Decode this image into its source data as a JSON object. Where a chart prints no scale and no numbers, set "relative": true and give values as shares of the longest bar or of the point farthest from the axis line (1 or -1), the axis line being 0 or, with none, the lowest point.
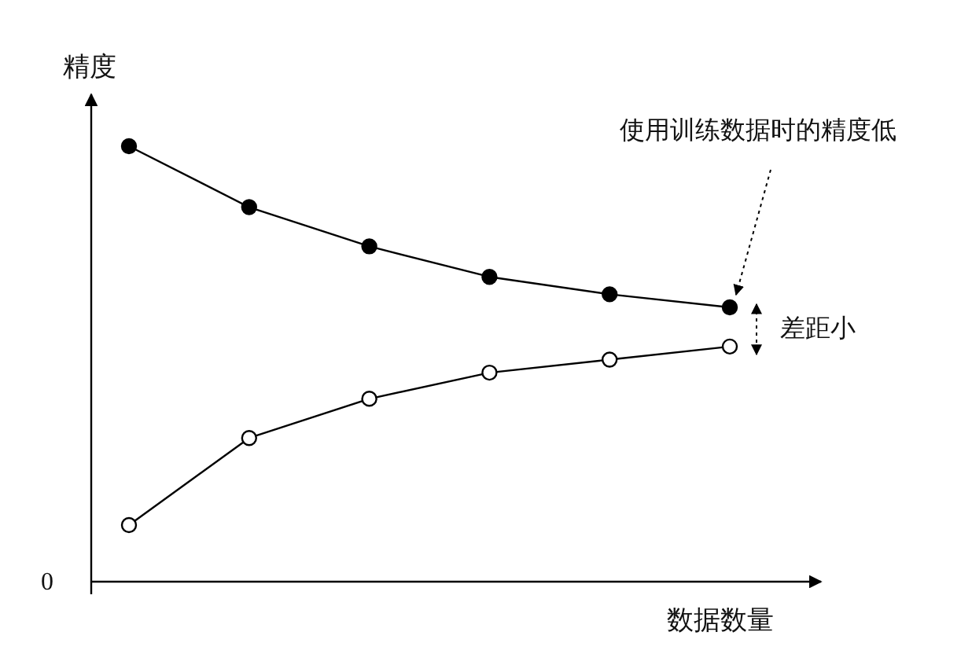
{
  "chart_data": {
    "type": "line",
    "relative": true,
    "ylabel": "精度",
    "xlabel": "数据数量",
    "marker": "circle",
    "line_style": "solid",
    "grid": false,
    "categories": [
      null,
      null,
      null,
      null,
      null,
      null
    ],
    "series": [
      {
        "color": "#000000",
        "values": [
          1,
          0.86,
          0.77,
          0.7,
          0.66,
          0.63
        ]
      },
      {
        "color": "#000000",
        "values": [
          0.13,
          0.33,
          0.42,
          0.48,
          0.51,
          0.54
        ]
      }
    ],
    "annotations": [
      "0",
      "使用训练数据时的精度低",
      "差距小"
    ]
  }
}
